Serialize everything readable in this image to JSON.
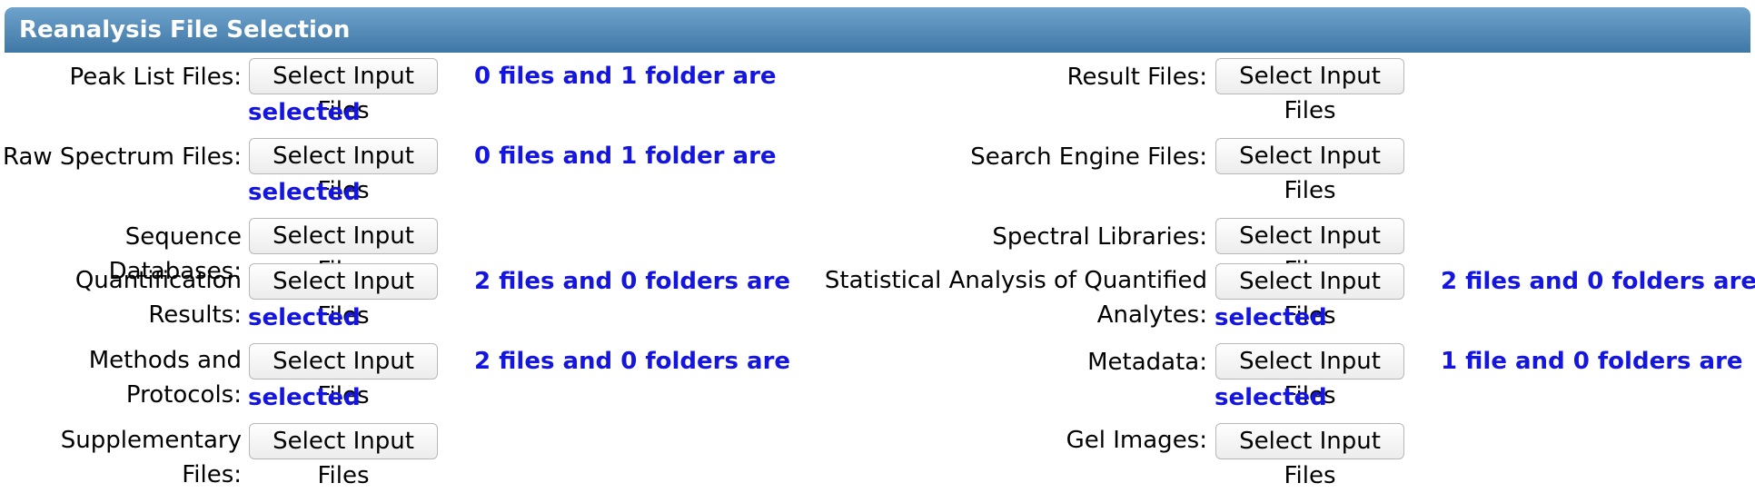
{
  "panel": {
    "title": "Reanalysis File Selection"
  },
  "button_label": "Select Input Files",
  "selected_word": "selected",
  "left": [
    {
      "label": "Peak List Files:",
      "status": "0 files and 1 folder are"
    },
    {
      "label": "Raw Spectrum Files:",
      "status": "0 files and 1 folder are"
    },
    {
      "label": "Sequence Databases:",
      "status": ""
    },
    {
      "label_line1": "Quantification",
      "label_line2": "Results:",
      "status": "2 files and 0 folders are"
    },
    {
      "label_line1": "Methods and",
      "label_line2": "Protocols:",
      "status": "2 files and 0 folders are"
    },
    {
      "label": "Supplementary Files:",
      "status": ""
    }
  ],
  "right": [
    {
      "label": "Result Files:",
      "status": ""
    },
    {
      "label": "Search Engine Files:",
      "status": ""
    },
    {
      "label": "Spectral Libraries:",
      "status": ""
    },
    {
      "label_line1": "Statistical Analysis of Quantified",
      "label_line2": "Analytes:",
      "status": "2 files and 0 folders are"
    },
    {
      "label": "Metadata:",
      "status": "1 file and 0 folders are"
    },
    {
      "label": "Gel Images:",
      "status": ""
    }
  ]
}
